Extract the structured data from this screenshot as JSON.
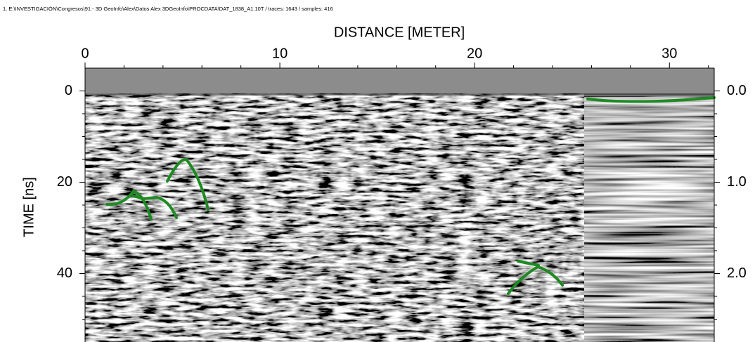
{
  "chart_data": {
    "type": "radargram",
    "file_label": "1. E:\\INVESTIGACIÓN\\Congresos\\91.- 3D GeoInfo\\Alex\\Datos Alex 3DGeoInfo\\PROCDATA\\DAT_1838_A1.10T / traces: 1643 / samples: 416",
    "title": "DISTANCE [METER]",
    "y_label": "TIME [ns]",
    "xlim": [
      0,
      32.3
    ],
    "xticks": [
      0,
      10,
      20,
      30
    ],
    "xminorticks": [
      2,
      4,
      6,
      8,
      12,
      14,
      16,
      18,
      22,
      24,
      26,
      28,
      32
    ],
    "ylim": [
      -5,
      55
    ],
    "yticks": [
      0,
      20,
      40
    ],
    "yminorticks": [
      5,
      10,
      15,
      25,
      30,
      35,
      45,
      50
    ],
    "y2lim": [
      -0.25,
      2.75
    ],
    "y2ticks": [
      {
        "value": 0,
        "label": "0.0"
      },
      {
        "value": 1,
        "label": "1.0"
      },
      {
        "value": 2,
        "label": "2.0"
      }
    ]
  }
}
